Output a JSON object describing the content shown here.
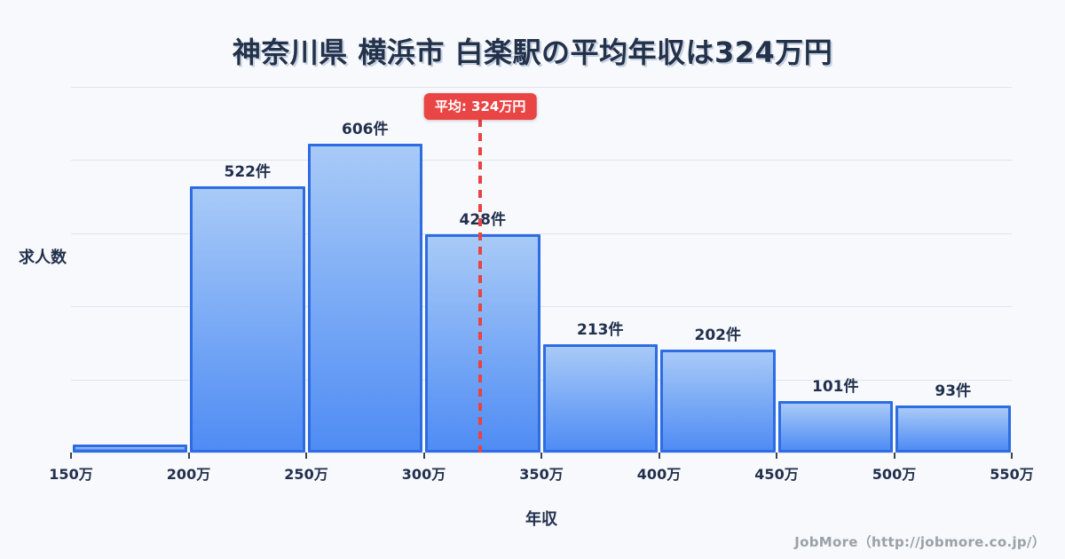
{
  "title": "神奈川県 横浜市 白楽駅の平均年収は324万円",
  "footer": {
    "text": "JobMore（http://jobmore.co.jp/）"
  },
  "colors": {
    "background": "#f7f9fc",
    "bar_fill_top": "#a8caf7",
    "bar_fill_bottom": "#4f8cf4",
    "bar_border": "#2d6ce3",
    "average_red": "#ea4545",
    "title_navy": "#233149",
    "gridline": "#dfe5ef",
    "footer_gray": "#9aa1a9"
  },
  "chart_data": {
    "type": "bar",
    "title": "神奈川県 横浜市 白楽駅の平均年収は324万円",
    "xlabel": "年収",
    "ylabel": "求人数",
    "x_ticks": [
      "150万",
      "200万",
      "250万",
      "300万",
      "350万",
      "400万",
      "450万",
      "500万",
      "550万"
    ],
    "bins": [
      {
        "range": "150万-200万",
        "value": 16,
        "label": ""
      },
      {
        "range": "200万-250万",
        "value": 522,
        "label": "522件"
      },
      {
        "range": "250万-300万",
        "value": 606,
        "label": "606件"
      },
      {
        "range": "300万-350万",
        "value": 428,
        "label": "428件"
      },
      {
        "range": "350万-400万",
        "value": 213,
        "label": "213件"
      },
      {
        "range": "400万-450万",
        "value": 202,
        "label": "202件"
      },
      {
        "range": "450万-500万",
        "value": 101,
        "label": "101件"
      },
      {
        "range": "500万-550万",
        "value": 93,
        "label": "93件"
      }
    ],
    "average": {
      "value": 324,
      "label": "平均: 324万円"
    },
    "xlim": [
      150,
      550
    ],
    "ylim": [
      0,
      717
    ],
    "grid": true,
    "gridline_count": 6,
    "legend": "none"
  }
}
